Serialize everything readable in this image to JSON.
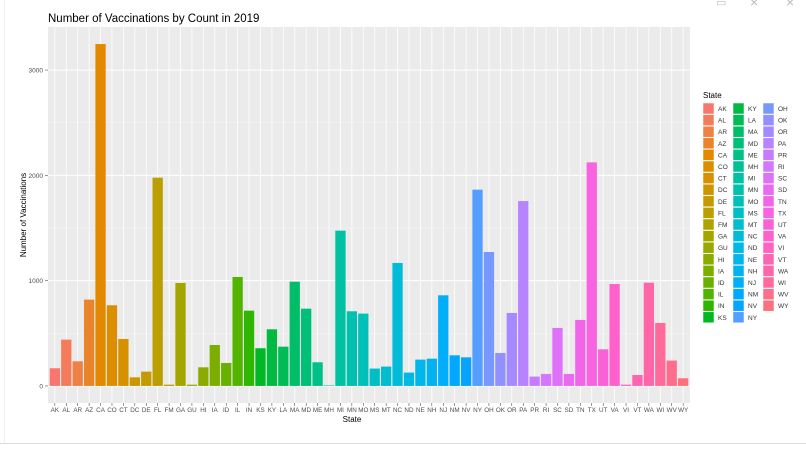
{
  "window": {
    "icons": [
      "image-icon",
      "close-icon",
      "close-icon"
    ]
  },
  "chart_data": {
    "type": "bar",
    "title": "Number of Vaccinations by Count in 2019",
    "xlabel": "State",
    "ylabel": "Number of Vaccinations",
    "ylim": [
      -162,
      3409
    ],
    "yticks": [
      0,
      1000,
      2000,
      3000
    ],
    "grid": true,
    "legend": {
      "title": "State",
      "placement": "right",
      "columns": 3
    },
    "palette": "ggplot hue (h 15-375, c 100, l 65)",
    "background": "#EBEBEB",
    "categories": [
      "AK",
      "AL",
      "AR",
      "AZ",
      "CA",
      "CO",
      "CT",
      "DC",
      "DE",
      "FL",
      "FM",
      "GA",
      "GU",
      "HI",
      "IA",
      "ID",
      "IL",
      "IN",
      "KS",
      "KY",
      "LA",
      "MA",
      "MD",
      "ME",
      "MH",
      "MI",
      "MN",
      "MO",
      "MS",
      "MT",
      "NC",
      "ND",
      "NE",
      "NH",
      "NJ",
      "NM",
      "NV",
      "NY",
      "OH",
      "OK",
      "OR",
      "PA",
      "PR",
      "RI",
      "SC",
      "SD",
      "TN",
      "TX",
      "UT",
      "VA",
      "VI",
      "VT",
      "WA",
      "WI",
      "WV",
      "WY"
    ],
    "values": [
      168,
      440,
      234,
      820,
      3247,
      766,
      446,
      82,
      136,
      1978,
      12,
      978,
      12,
      177,
      389,
      218,
      1035,
      715,
      358,
      538,
      373,
      990,
      734,
      225,
      5,
      1475,
      709,
      687,
      165,
      184,
      1168,
      127,
      250,
      259,
      861,
      291,
      272,
      1864,
      1272,
      313,
      693,
      1756,
      89,
      114,
      551,
      114,
      627,
      2123,
      348,
      968,
      12,
      104,
      981,
      598,
      241,
      73
    ]
  }
}
